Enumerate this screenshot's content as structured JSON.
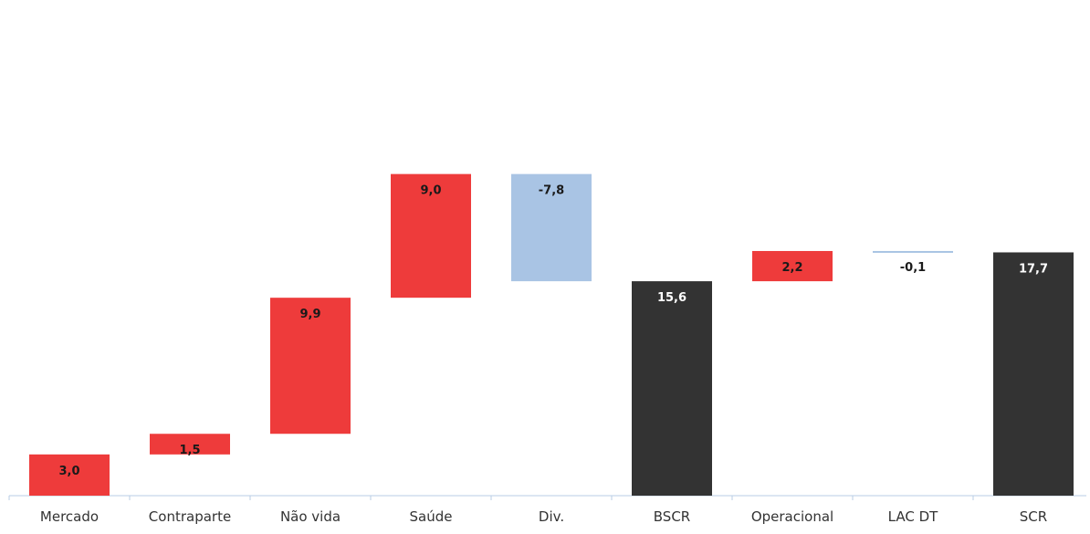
{
  "chart_data": {
    "type": "bar",
    "subtype": "waterfall",
    "title": "",
    "xlabel": "",
    "ylabel": "",
    "ylim": [
      0,
      34.6
    ],
    "grid": false,
    "legend": "none",
    "categories": [
      "Mercado",
      "Contraparte",
      "Não vida",
      "Saúde",
      "Div.",
      "BSCR",
      "Operacional",
      "LAC DT",
      "SCR"
    ],
    "values": [
      3.0,
      1.5,
      9.9,
      9.0,
      -7.8,
      15.6,
      2.2,
      -0.1,
      17.7
    ],
    "bar_kinds": [
      "increase",
      "increase",
      "increase",
      "increase",
      "decrease",
      "total",
      "increase",
      "decrease",
      "total"
    ],
    "data_labels": [
      "3,0",
      "1,5",
      "9,9",
      "9,0",
      "-7,8",
      "15,6",
      "2,2",
      "-0,1",
      "17,7"
    ],
    "colors": {
      "increase": "#ee3b3b",
      "decrease": "#a9c4e4",
      "total": "#333333",
      "axis": "#b9cde6"
    }
  }
}
